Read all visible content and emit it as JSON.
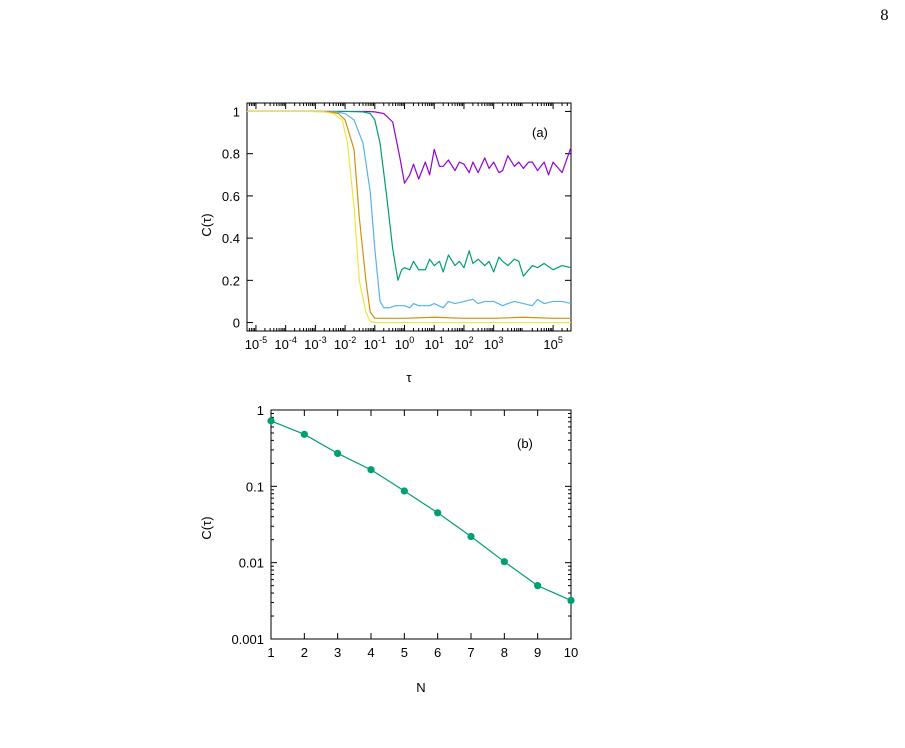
{
  "page_number": "8",
  "chart_data": [
    {
      "type": "line",
      "panel_label": "(a)",
      "xlabel": "τ",
      "ylabel": "C(τ)",
      "x_scale": "log",
      "xlim": [
        5e-06,
        400000
      ],
      "ylim": [
        -0.04,
        1.04
      ],
      "x_ticks": [
        {
          "value": 1e-05,
          "base": "10",
          "exp": "-5"
        },
        {
          "value": 0.0001,
          "base": "10",
          "exp": "-4"
        },
        {
          "value": 0.001,
          "base": "10",
          "exp": "-3"
        },
        {
          "value": 0.01,
          "base": "10",
          "exp": "-2"
        },
        {
          "value": 0.1,
          "base": "10",
          "exp": "-1"
        },
        {
          "value": 1,
          "base": "10",
          "exp": "0"
        },
        {
          "value": 10,
          "base": "10",
          "exp": "1"
        },
        {
          "value": 100,
          "base": "10",
          "exp": "2"
        },
        {
          "value": 1000,
          "base": "10",
          "exp": "3"
        },
        {
          "value": 100000,
          "base": "10",
          "exp": "5"
        }
      ],
      "y_ticks": [
        {
          "value": 0,
          "label": "0"
        },
        {
          "value": 0.2,
          "label": "0.2"
        },
        {
          "value": 0.4,
          "label": "0.4"
        },
        {
          "value": 0.6,
          "label": "0.6"
        },
        {
          "value": 0.8,
          "label": "0.8"
        },
        {
          "value": 1,
          "label": "1"
        }
      ],
      "grid": false,
      "legend": "none",
      "series": [
        {
          "color": "#9400d3",
          "x": [
            5e-06,
            0.001,
            0.01,
            0.05,
            0.1,
            0.2,
            0.4,
            0.7,
            1,
            1.5,
            2,
            3,
            5,
            7,
            10,
            15,
            20,
            30,
            50,
            70,
            100,
            150,
            200,
            300,
            500,
            700,
            1000,
            1500,
            2000,
            3000,
            5000,
            7000,
            10000,
            15000,
            20000,
            30000,
            50000,
            70000,
            100000,
            200000,
            400000
          ],
          "y": [
            1,
            1,
            1,
            1,
            0.998,
            0.99,
            0.95,
            0.78,
            0.66,
            0.7,
            0.75,
            0.68,
            0.76,
            0.7,
            0.82,
            0.74,
            0.74,
            0.77,
            0.72,
            0.76,
            0.75,
            0.71,
            0.76,
            0.71,
            0.78,
            0.73,
            0.76,
            0.71,
            0.72,
            0.79,
            0.74,
            0.76,
            0.73,
            0.76,
            0.76,
            0.72,
            0.76,
            0.7,
            0.76,
            0.71,
            0.83
          ]
        },
        {
          "color": "#009e73",
          "x": [
            5e-06,
            0.001,
            0.01,
            0.04,
            0.07,
            0.1,
            0.15,
            0.25,
            0.4,
            0.6,
            0.8,
            1,
            1.5,
            2,
            3,
            5,
            7,
            10,
            15,
            20,
            30,
            50,
            70,
            100,
            150,
            200,
            300,
            500,
            700,
            1000,
            1500,
            2000,
            3000,
            5000,
            7000,
            10000,
            20000,
            30000,
            50000,
            100000,
            200000,
            400000
          ],
          "y": [
            1,
            1,
            1,
            0.998,
            0.99,
            0.96,
            0.85,
            0.6,
            0.35,
            0.2,
            0.25,
            0.26,
            0.25,
            0.29,
            0.25,
            0.25,
            0.3,
            0.27,
            0.29,
            0.24,
            0.32,
            0.27,
            0.29,
            0.26,
            0.34,
            0.28,
            0.3,
            0.27,
            0.29,
            0.24,
            0.31,
            0.29,
            0.27,
            0.3,
            0.29,
            0.22,
            0.27,
            0.26,
            0.28,
            0.25,
            0.27,
            0.26
          ]
        },
        {
          "color": "#56b4e9",
          "x": [
            5e-06,
            0.001,
            0.005,
            0.01,
            0.02,
            0.04,
            0.07,
            0.1,
            0.15,
            0.2,
            0.3,
            0.5,
            0.7,
            1,
            1.5,
            2,
            3,
            5,
            7,
            10,
            20,
            30,
            50,
            100,
            200,
            300,
            500,
            1000,
            2000,
            3000,
            5000,
            10000,
            20000,
            30000,
            50000,
            100000,
            200000,
            400000
          ],
          "y": [
            1,
            1,
            0.998,
            0.99,
            0.96,
            0.85,
            0.62,
            0.35,
            0.1,
            0.07,
            0.07,
            0.08,
            0.08,
            0.08,
            0.07,
            0.09,
            0.08,
            0.08,
            0.08,
            0.09,
            0.07,
            0.1,
            0.09,
            0.1,
            0.11,
            0.09,
            0.1,
            0.1,
            0.08,
            0.09,
            0.1,
            0.09,
            0.08,
            0.11,
            0.09,
            0.1,
            0.1,
            0.09
          ]
        },
        {
          "color": "#d09010",
          "x": [
            5e-06,
            0.001,
            0.003,
            0.006,
            0.01,
            0.02,
            0.03,
            0.05,
            0.07,
            0.1,
            0.13,
            0.2,
            0.5,
            1,
            10,
            100,
            1000,
            10000,
            100000,
            400000
          ],
          "y": [
            1,
            1,
            0.998,
            0.99,
            0.96,
            0.82,
            0.5,
            0.2,
            0.05,
            0.02,
            0.02,
            0.02,
            0.02,
            0.02,
            0.025,
            0.02,
            0.02,
            0.025,
            0.02,
            0.02
          ]
        },
        {
          "color": "#f0e442",
          "x": [
            5e-06,
            0.0005,
            0.002,
            0.004,
            0.008,
            0.012,
            0.02,
            0.03,
            0.05,
            0.07,
            0.1,
            1,
            10,
            100,
            1000,
            10000,
            100000,
            400000
          ],
          "y": [
            1,
            1,
            0.998,
            0.99,
            0.96,
            0.85,
            0.55,
            0.2,
            0.05,
            0.005,
            0,
            0,
            0,
            0,
            0,
            0,
            0,
            0
          ]
        }
      ]
    },
    {
      "type": "line",
      "panel_label": "(b)",
      "xlabel": "N",
      "ylabel": "C(τ)",
      "y_scale": "log",
      "xlim": [
        1,
        10
      ],
      "ylim": [
        0.001,
        1
      ],
      "x_ticks": [
        {
          "value": 1,
          "label": "1"
        },
        {
          "value": 2,
          "label": "2"
        },
        {
          "value": 3,
          "label": "3"
        },
        {
          "value": 4,
          "label": "4"
        },
        {
          "value": 5,
          "label": "5"
        },
        {
          "value": 6,
          "label": "6"
        },
        {
          "value": 7,
          "label": "7"
        },
        {
          "value": 8,
          "label": "8"
        },
        {
          "value": 9,
          "label": "9"
        },
        {
          "value": 10,
          "label": "10"
        }
      ],
      "y_ticks": [
        {
          "value": 1,
          "label": "1"
        },
        {
          "value": 0.1,
          "label": "0.1"
        },
        {
          "value": 0.01,
          "label": "0.01"
        },
        {
          "value": 0.001,
          "label": "0.001"
        }
      ],
      "grid": false,
      "legend": "none",
      "series": [
        {
          "color": "#009e73",
          "marker": "circle",
          "x": [
            1,
            2,
            3,
            4,
            5,
            6,
            7,
            8,
            9,
            10
          ],
          "y": [
            0.72,
            0.48,
            0.27,
            0.165,
            0.087,
            0.045,
            0.022,
            0.0103,
            0.005,
            0.0032
          ]
        }
      ]
    }
  ]
}
